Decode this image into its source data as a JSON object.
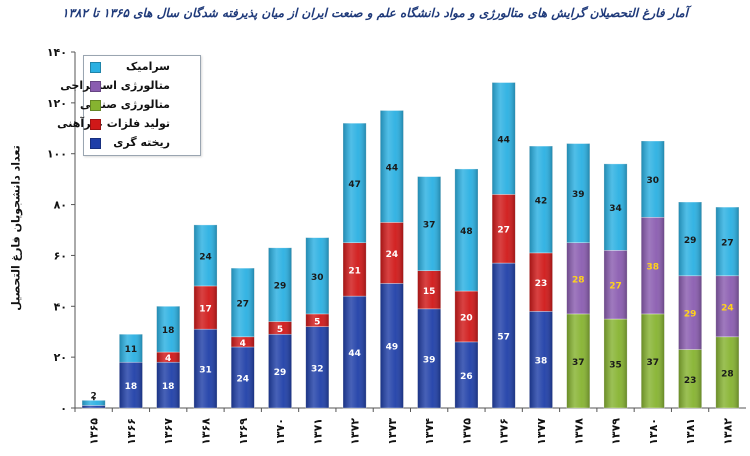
{
  "chart_data": {
    "type": "bar",
    "stacked": true,
    "title": "آمار فارغ التحصیلان گرایش های متالورژی و مواد دانشگاه علم و صنعت ایران از میان پذیرفته شدگان سال های ۱۳۶۵ تا ۱۳۸۲",
    "ylabel": "تعداد دانشجویان فارغ التحصیل",
    "xlabel": "",
    "ylim": [
      0,
      140
    ],
    "yticks": [
      "۰",
      "۲۰",
      "۴۰",
      "۶۰",
      "۸۰",
      "۱۰۰",
      "۱۲۰",
      "۱۴۰"
    ],
    "ytick_values": [
      0,
      20,
      40,
      60,
      80,
      100,
      120,
      140
    ],
    "grid": false,
    "legend_position": "top-left",
    "categories": [
      "۱۳۶۵",
      "۱۳۶۶",
      "۱۳۶۷",
      "۱۳۶۸",
      "۱۳۶۹",
      "۱۳۷۰",
      "۱۳۷۱",
      "۱۳۷۲",
      "۱۳۷۳",
      "۱۳۷۴",
      "۱۳۷۵",
      "۱۳۷۶",
      "۱۳۷۷",
      "۱۳۷۸",
      "۱۳۷۹",
      "۱۳۸۰",
      "۱۳۸۱",
      "۱۳۸۲"
    ],
    "series": [
      {
        "name": "ریخته گری",
        "color": "#1f3fa8",
        "values": [
          1,
          18,
          18,
          31,
          24,
          29,
          32,
          44,
          49,
          39,
          26,
          57,
          38,
          0,
          0,
          0,
          0,
          0
        ],
        "labels": [
          "1",
          "18",
          "18",
          "31",
          "24",
          "29",
          "32",
          "44",
          "49",
          "39",
          "26",
          "57",
          "38",
          "",
          "",
          "",
          "",
          ""
        ]
      },
      {
        "name": "تولید فلزات غیرآهنی",
        "color": "#d01818",
        "values": [
          0,
          0,
          4,
          17,
          4,
          5,
          5,
          21,
          24,
          15,
          20,
          27,
          23,
          0,
          0,
          0,
          0,
          0
        ],
        "labels": [
          "",
          "",
          "4",
          "17",
          "4",
          "5",
          "5",
          "21",
          "24",
          "15",
          "20",
          "27",
          "23",
          "",
          "",
          "",
          "",
          ""
        ]
      },
      {
        "name": "متالورژی صنعتی",
        "color": "#86b330",
        "values": [
          0,
          0,
          0,
          0,
          0,
          0,
          0,
          0,
          0,
          0,
          0,
          0,
          0,
          37,
          35,
          37,
          23,
          28
        ],
        "labels": [
          "",
          "",
          "",
          "",
          "",
          "",
          "",
          "",
          "",
          "",
          "",
          "",
          "",
          "37",
          "35",
          "37",
          "23",
          "28"
        ]
      },
      {
        "name": "متالورژی استخراجی",
        "color": "#8a5cb0",
        "values": [
          0,
          0,
          0,
          0,
          0,
          0,
          0,
          0,
          0,
          0,
          0,
          0,
          0,
          28,
          27,
          38,
          29,
          24
        ],
        "labels": [
          "",
          "",
          "",
          "",
          "",
          "",
          "",
          "",
          "",
          "",
          "",
          "",
          "",
          "28",
          "27",
          "38",
          "29",
          "24"
        ]
      },
      {
        "name": "سرامیک",
        "color": "#2ab0e2",
        "values": [
          2,
          11,
          18,
          24,
          27,
          29,
          30,
          47,
          44,
          37,
          48,
          44,
          42,
          39,
          34,
          30,
          29,
          27
        ],
        "labels": [
          "2",
          "11",
          "18",
          "24",
          "27",
          "29",
          "30",
          "47",
          "44",
          "37",
          "48",
          "44",
          "42",
          "39",
          "34",
          "30",
          "29",
          "27"
        ]
      }
    ],
    "legend_order": [
      "سرامیک",
      "متالورژی استخراجی",
      "متالورژی صنعتی",
      "تولید فلزات غیرآهنی",
      "ریخته گری"
    ]
  }
}
